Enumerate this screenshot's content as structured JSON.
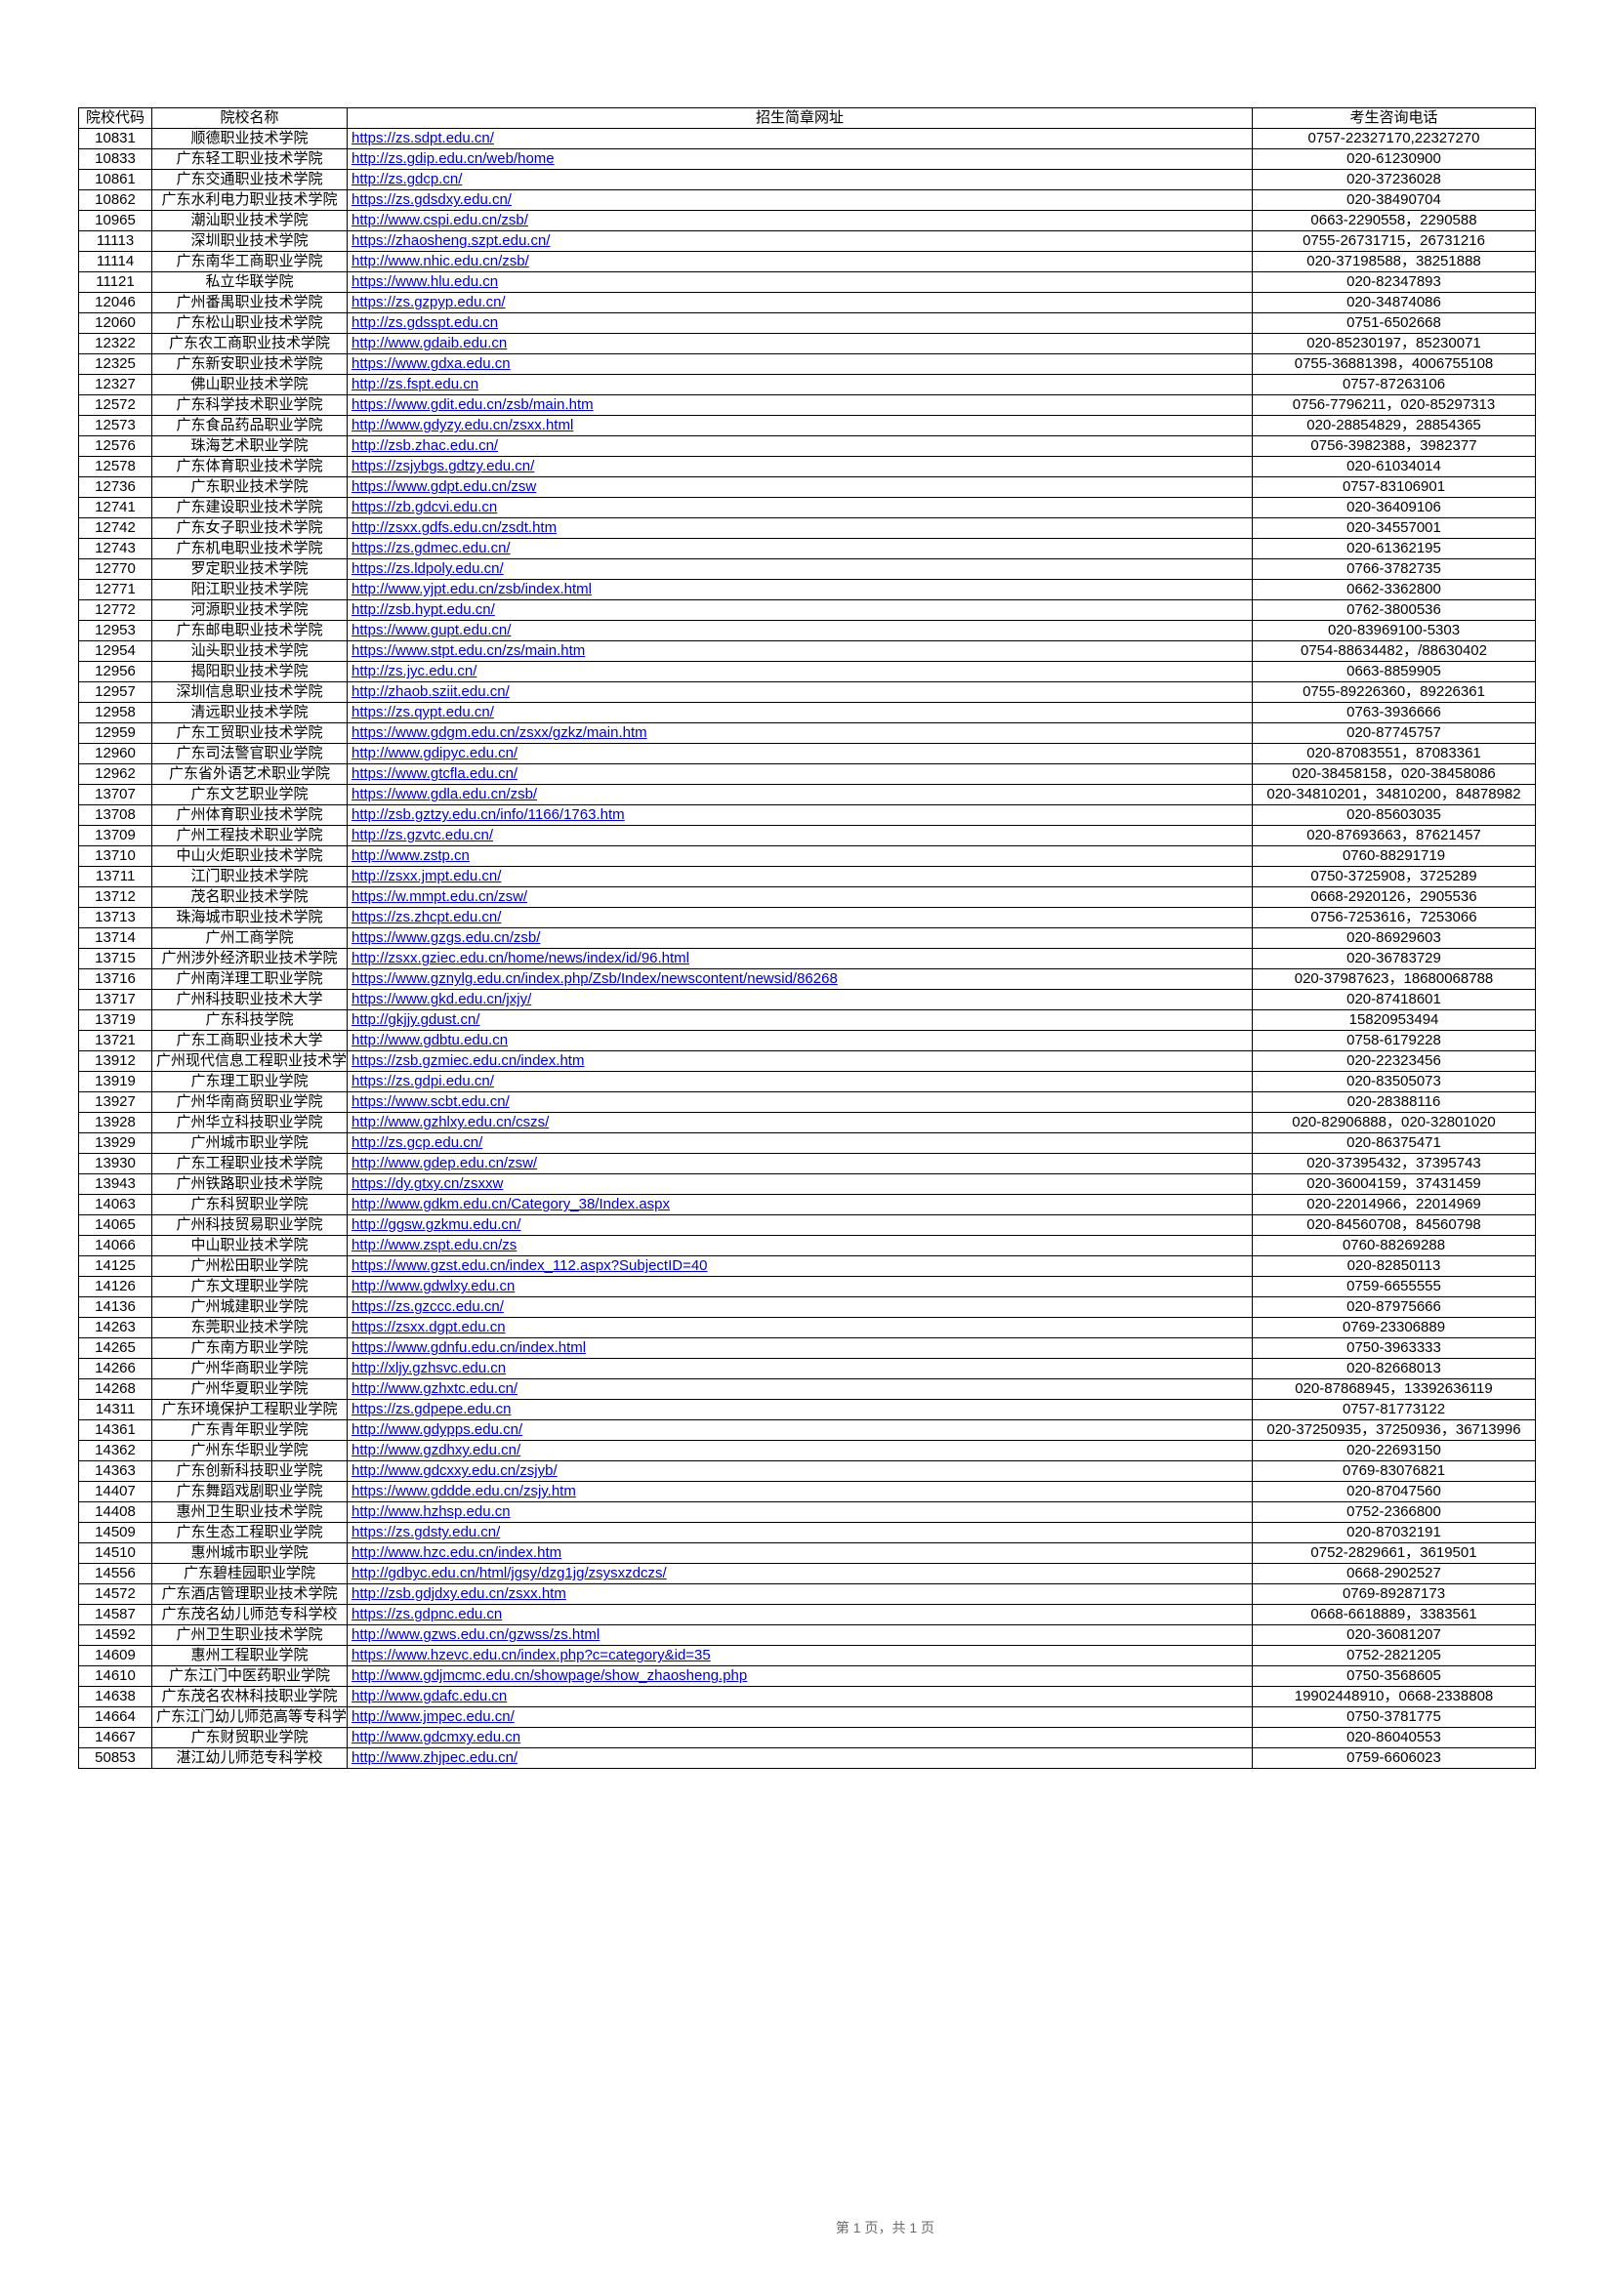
{
  "headers": {
    "code": "院校代码",
    "name": "院校名称",
    "url": "招生简章网址",
    "phone": "考生咨询电话"
  },
  "footer": "第 1 页，共 1 页",
  "rows": [
    {
      "code": "10831",
      "name": "顺德职业技术学院",
      "url": "https://zs.sdpt.edu.cn/",
      "phone": "0757-22327170,22327270"
    },
    {
      "code": "10833",
      "name": "广东轻工职业技术学院",
      "url": "http://zs.gdip.edu.cn/web/home",
      "phone": "020-61230900"
    },
    {
      "code": "10861",
      "name": "广东交通职业技术学院",
      "url": "http://zs.gdcp.cn/",
      "phone": "020-37236028"
    },
    {
      "code": "10862",
      "name": "广东水利电力职业技术学院",
      "url": "https://zs.gdsdxy.edu.cn/",
      "phone": "020-38490704"
    },
    {
      "code": "10965",
      "name": "潮汕职业技术学院",
      "url": "http://www.cspi.edu.cn/zsb/",
      "phone": "0663-2290558，2290588"
    },
    {
      "code": "11113",
      "name": "深圳职业技术学院",
      "url": "https://zhaosheng.szpt.edu.cn/",
      "phone": "0755-26731715，26731216"
    },
    {
      "code": "11114",
      "name": "广东南华工商职业学院",
      "url": "http://www.nhic.edu.cn/zsb/",
      "phone": "020-37198588，38251888"
    },
    {
      "code": "11121",
      "name": "私立华联学院",
      "url": "https://www.hlu.edu.cn",
      "phone": "020-82347893"
    },
    {
      "code": "12046",
      "name": "广州番禺职业技术学院",
      "url": "https://zs.gzpyp.edu.cn/",
      "phone": "020-34874086"
    },
    {
      "code": "12060",
      "name": "广东松山职业技术学院",
      "url": "http://zs.gdsspt.edu.cn",
      "phone": "0751-6502668"
    },
    {
      "code": "12322",
      "name": "广东农工商职业技术学院",
      "url": "http://www.gdaib.edu.cn",
      "phone": "020-85230197，85230071"
    },
    {
      "code": "12325",
      "name": "广东新安职业技术学院",
      "url": "https://www.gdxa.edu.cn",
      "phone": "0755-36881398，4006755108"
    },
    {
      "code": "12327",
      "name": "佛山职业技术学院",
      "url": "http://zs.fspt.edu.cn",
      "phone": "0757-87263106"
    },
    {
      "code": "12572",
      "name": "广东科学技术职业学院",
      "url": "https://www.gdit.edu.cn/zsb/main.htm",
      "phone": "0756-7796211，020-85297313"
    },
    {
      "code": "12573",
      "name": "广东食品药品职业学院",
      "url": "http://www.gdyzy.edu.cn/zsxx.html",
      "phone": "020-28854829，28854365"
    },
    {
      "code": "12576",
      "name": "珠海艺术职业学院",
      "url": "http://zsb.zhac.edu.cn/",
      "phone": "0756-3982388，3982377"
    },
    {
      "code": "12578",
      "name": "广东体育职业技术学院",
      "url": "https://zsjybgs.gdtzy.edu.cn/",
      "phone": "020-61034014"
    },
    {
      "code": "12736",
      "name": "广东职业技术学院",
      "url": "https://www.gdpt.edu.cn/zsw",
      "phone": "0757-83106901"
    },
    {
      "code": "12741",
      "name": "广东建设职业技术学院",
      "url": "https://zb.gdcvi.edu.cn",
      "phone": "020-36409106"
    },
    {
      "code": "12742",
      "name": "广东女子职业技术学院",
      "url": "http://zsxx.gdfs.edu.cn/zsdt.htm",
      "phone": "020-34557001"
    },
    {
      "code": "12743",
      "name": "广东机电职业技术学院",
      "url": "https://zs.gdmec.edu.cn/",
      "phone": "020-61362195"
    },
    {
      "code": "12770",
      "name": "罗定职业技术学院",
      "url": "https://zs.ldpoly.edu.cn/",
      "phone": "0766-3782735"
    },
    {
      "code": "12771",
      "name": "阳江职业技术学院",
      "url": "http://www.yjpt.edu.cn/zsb/index.html",
      "phone": "0662-3362800"
    },
    {
      "code": "12772",
      "name": "河源职业技术学院",
      "url": "http://zsb.hypt.edu.cn/",
      "phone": "0762-3800536"
    },
    {
      "code": "12953",
      "name": "广东邮电职业技术学院",
      "url": "https://www.gupt.edu.cn/",
      "phone": "020-83969100-5303"
    },
    {
      "code": "12954",
      "name": "汕头职业技术学院",
      "url": "https://www.stpt.edu.cn/zs/main.htm",
      "phone": "0754-88634482，/88630402"
    },
    {
      "code": "12956",
      "name": "揭阳职业技术学院",
      "url": "http://zs.jyc.edu.cn/",
      "phone": "0663-8859905"
    },
    {
      "code": "12957",
      "name": "深圳信息职业技术学院",
      "url": "http://zhaob.sziit.edu.cn/",
      "phone": "0755-89226360，89226361"
    },
    {
      "code": "12958",
      "name": "清远职业技术学院",
      "url": "https://zs.qypt.edu.cn/",
      "phone": "0763-3936666"
    },
    {
      "code": "12959",
      "name": "广东工贸职业技术学院",
      "url": "https://www.gdgm.edu.cn/zsxx/gzkz/main.htm",
      "phone": "020-87745757"
    },
    {
      "code": "12960",
      "name": "广东司法警官职业学院",
      "url": "http://www.gdipyc.edu.cn/",
      "phone": "020-87083551，87083361"
    },
    {
      "code": "12962",
      "name": "广东省外语艺术职业学院",
      "url": "https://www.gtcfla.edu.cn/",
      "phone": "020-38458158，020-38458086"
    },
    {
      "code": "13707",
      "name": "广东文艺职业学院",
      "url": "https://www.gdla.edu.cn/zsb/",
      "phone": "020-34810201，34810200，84878982"
    },
    {
      "code": "13708",
      "name": "广州体育职业技术学院",
      "url": "http://zsb.gztzy.edu.cn/info/1166/1763.htm",
      "phone": "020-85603035"
    },
    {
      "code": "13709",
      "name": "广州工程技术职业学院",
      "url": "http://zs.gzvtc.edu.cn/",
      "phone": "020-87693663，87621457"
    },
    {
      "code": "13710",
      "name": "中山火炬职业技术学院",
      "url": "http://www.zstp.cn",
      "phone": "0760-88291719"
    },
    {
      "code": "13711",
      "name": "江门职业技术学院",
      "url": "http://zsxx.jmpt.edu.cn/",
      "phone": "0750-3725908，3725289"
    },
    {
      "code": "13712",
      "name": "茂名职业技术学院",
      "url": "https://w.mmpt.edu.cn/zsw/",
      "phone": "0668-2920126，2905536"
    },
    {
      "code": "13713",
      "name": "珠海城市职业技术学院",
      "url": "https://zs.zhcpt.edu.cn/",
      "phone": "0756-7253616，7253066"
    },
    {
      "code": "13714",
      "name": "广州工商学院",
      "url": "https://www.gzgs.edu.cn/zsb/",
      "phone": "020-86929603"
    },
    {
      "code": "13715",
      "name": "广州涉外经济职业技术学院",
      "url": "http://zsxx.gziec.edu.cn/home/news/index/id/96.html",
      "phone": "020-36783729"
    },
    {
      "code": "13716",
      "name": "广州南洋理工职业学院",
      "url": "https://www.gznylg.edu.cn/index.php/Zsb/Index/newscontent/newsid/86268",
      "phone": "020-37987623，18680068788"
    },
    {
      "code": "13717",
      "name": "广州科技职业技术大学",
      "url": "https://www.gkd.edu.cn/jxjy/",
      "phone": "020-87418601"
    },
    {
      "code": "13719",
      "name": "广东科技学院",
      "url": "http://gkjjy.gdust.cn/",
      "phone": "15820953494"
    },
    {
      "code": "13721",
      "name": "广东工商职业技术大学",
      "url": "http://www.gdbtu.edu.cn",
      "phone": "0758-6179228"
    },
    {
      "code": "13912",
      "name": "广州现代信息工程职业技术学院",
      "url": "https://zsb.gzmiec.edu.cn/index.htm",
      "phone": "020-22323456"
    },
    {
      "code": "13919",
      "name": "广东理工职业学院",
      "url": "https://zs.gdpi.edu.cn/",
      "phone": "020-83505073"
    },
    {
      "code": "13927",
      "name": "广州华南商贸职业学院",
      "url": "https://www.scbt.edu.cn/",
      "phone": "020-28388116"
    },
    {
      "code": "13928",
      "name": "广州华立科技职业学院",
      "url": "http://www.gzhlxy.edu.cn/cszs/",
      "phone": "020-82906888，020-32801020"
    },
    {
      "code": "13929",
      "name": "广州城市职业学院",
      "url": "http://zs.gcp.edu.cn/",
      "phone": "020-86375471"
    },
    {
      "code": "13930",
      "name": "广东工程职业技术学院",
      "url": "http://www.gdep.edu.cn/zsw/",
      "phone": "020-37395432，37395743"
    },
    {
      "code": "13943",
      "name": "广州铁路职业技术学院",
      "url": "https://dy.gtxy.cn/zsxxw",
      "phone": "020-36004159，37431459"
    },
    {
      "code": "14063",
      "name": "广东科贸职业学院",
      "url": "http://www.gdkm.edu.cn/Category_38/Index.aspx",
      "phone": "020-22014966，22014969"
    },
    {
      "code": "14065",
      "name": "广州科技贸易职业学院",
      "url": "http://ggsw.gzkmu.edu.cn/",
      "phone": "020-84560708，84560798"
    },
    {
      "code": "14066",
      "name": "中山职业技术学院",
      "url": "http://www.zspt.edu.cn/zs",
      "phone": "0760-88269288"
    },
    {
      "code": "14125",
      "name": "广州松田职业学院",
      "url": "https://www.gzst.edu.cn/index_112.aspx?SubjectID=40",
      "phone": "020-82850113"
    },
    {
      "code": "14126",
      "name": "广东文理职业学院",
      "url": "http://www.gdwlxy.edu.cn",
      "phone": "0759-6655555"
    },
    {
      "code": "14136",
      "name": "广州城建职业学院",
      "url": "https://zs.gzccc.edu.cn/",
      "phone": "020-87975666"
    },
    {
      "code": "14263",
      "name": "东莞职业技术学院",
      "url": "https://zsxx.dgpt.edu.cn",
      "phone": "0769-23306889"
    },
    {
      "code": "14265",
      "name": "广东南方职业学院",
      "url": "https://www.gdnfu.edu.cn/index.html",
      "phone": "0750-3963333"
    },
    {
      "code": "14266",
      "name": "广州华商职业学院",
      "url": "http://xljy.gzhsvc.edu.cn",
      "phone": "020-82668013"
    },
    {
      "code": "14268",
      "name": "广州华夏职业学院",
      "url": "http://www.gzhxtc.edu.cn/",
      "phone": "020-87868945，13392636119"
    },
    {
      "code": "14311",
      "name": "广东环境保护工程职业学院",
      "url": "https://zs.gdpepe.edu.cn",
      "phone": "0757-81773122"
    },
    {
      "code": "14361",
      "name": "广东青年职业学院",
      "url": "http://www.gdypps.edu.cn/",
      "phone": "020-37250935，37250936，36713996"
    },
    {
      "code": "14362",
      "name": "广州东华职业学院",
      "url": "http://www.gzdhxy.edu.cn/",
      "phone": "020-22693150"
    },
    {
      "code": "14363",
      "name": "广东创新科技职业学院",
      "url": "http://www.gdcxxy.edu.cn/zsjyb/",
      "phone": "0769-83076821"
    },
    {
      "code": "14407",
      "name": "广东舞蹈戏剧职业学院",
      "url": "https://www.gddde.edu.cn/zsjy.htm",
      "phone": "020-87047560"
    },
    {
      "code": "14408",
      "name": "惠州卫生职业技术学院",
      "url": "http://www.hzhsp.edu.cn",
      "phone": "0752-2366800"
    },
    {
      "code": "14509",
      "name": "广东生态工程职业学院",
      "url": "https://zs.gdsty.edu.cn/",
      "phone": "020-87032191"
    },
    {
      "code": "14510",
      "name": "惠州城市职业学院",
      "url": "http://www.hzc.edu.cn/index.htm",
      "phone": "0752-2829661，3619501"
    },
    {
      "code": "14556",
      "name": "广东碧桂园职业学院",
      "url": "http://gdbyc.edu.cn/html/jgsy/dzg1jg/zsysxzdczs/",
      "phone": "0668-2902527"
    },
    {
      "code": "14572",
      "name": "广东酒店管理职业技术学院",
      "url": "http://zsb.gdjdxy.edu.cn/zsxx.htm",
      "phone": "0769-89287173"
    },
    {
      "code": "14587",
      "name": "广东茂名幼儿师范专科学校",
      "url": "https://zs.gdpnc.edu.cn",
      "phone": "0668-6618889，3383561"
    },
    {
      "code": "14592",
      "name": "广州卫生职业技术学院",
      "url": "http://www.gzws.edu.cn/gzwss/zs.html",
      "phone": "020-36081207"
    },
    {
      "code": "14609",
      "name": "惠州工程职业学院",
      "url": "https://www.hzevc.edu.cn/index.php?c=category&id=35",
      "phone": "0752-2821205"
    },
    {
      "code": "14610",
      "name": "广东江门中医药职业学院",
      "url": "http://www.gdjmcmc.edu.cn/showpage/show_zhaosheng.php",
      "phone": "0750-3568605"
    },
    {
      "code": "14638",
      "name": "广东茂名农林科技职业学院",
      "url": "http://www.gdafc.edu.cn",
      "phone": "19902448910，0668-2338808"
    },
    {
      "code": "14664",
      "name": "广东江门幼儿师范高等专科学校",
      "url": "http://www.jmpec.edu.cn/",
      "phone": "0750-3781775"
    },
    {
      "code": "14667",
      "name": "广东财贸职业学院",
      "url": "http://www.gdcmxy.edu.cn",
      "phone": "020-86040553"
    },
    {
      "code": "50853",
      "name": "湛江幼儿师范专科学校",
      "url": "http://www.zhjpec.edu.cn/",
      "phone": "0759-6606023"
    }
  ]
}
